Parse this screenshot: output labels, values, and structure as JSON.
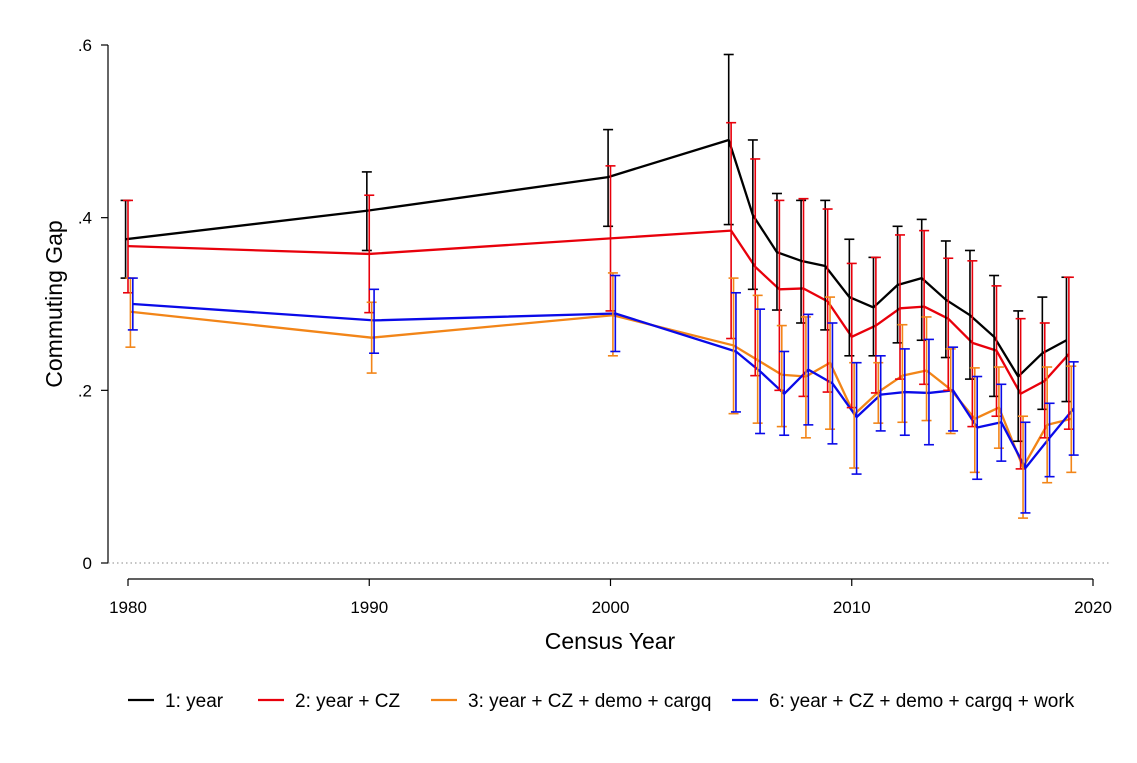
{
  "chart_data": {
    "type": "line",
    "title": "",
    "xlabel": "Census Year",
    "ylabel": "Commuting Gap",
    "xlim": [
      1980,
      2020
    ],
    "ylim": [
      0,
      0.6
    ],
    "x_ticks": [
      1980,
      1990,
      2000,
      2010,
      2020
    ],
    "x_tick_labels": [
      "1980",
      "1990",
      "2000",
      "2010",
      "2020"
    ],
    "y_ticks": [
      0,
      0.2,
      0.4,
      0.6
    ],
    "y_tick_labels": [
      "0",
      ".2",
      ".4",
      ".6"
    ],
    "zero_reference_line": true,
    "grid": false,
    "legend_position": "bottom",
    "x": [
      1980,
      1990,
      2000,
      2005,
      2006,
      2007,
      2008,
      2009,
      2010,
      2011,
      2012,
      2013,
      2014,
      2015,
      2016,
      2017,
      2018,
      2019
    ],
    "series": [
      {
        "name": "1: year",
        "color": "#000000",
        "x_offset": -0.1,
        "values": [
          0.375,
          0.408,
          0.447,
          0.49,
          0.403,
          0.36,
          0.35,
          0.344,
          0.308,
          0.296,
          0.322,
          0.33,
          0.305,
          0.287,
          0.262,
          0.216,
          0.243,
          0.258
        ],
        "lower": [
          0.33,
          0.362,
          0.39,
          0.392,
          0.317,
          0.293,
          0.278,
          0.27,
          0.24,
          0.24,
          0.255,
          0.258,
          0.238,
          0.213,
          0.193,
          0.141,
          0.178,
          0.187
        ],
        "upper": [
          0.42,
          0.453,
          0.502,
          0.589,
          0.49,
          0.428,
          0.42,
          0.42,
          0.375,
          0.354,
          0.39,
          0.398,
          0.373,
          0.362,
          0.333,
          0.292,
          0.308,
          0.331
        ]
      },
      {
        "name": "2: year + CZ",
        "color": "#e8000b",
        "x_offset": 0.0,
        "values": [
          0.367,
          0.358,
          0.376,
          0.385,
          0.343,
          0.317,
          0.318,
          0.303,
          0.262,
          0.275,
          0.295,
          0.297,
          0.283,
          0.255,
          0.246,
          0.196,
          0.211,
          0.242
        ],
        "lower": [
          0.313,
          0.29,
          0.292,
          0.26,
          0.217,
          0.2,
          0.193,
          0.198,
          0.18,
          0.197,
          0.213,
          0.207,
          0.2,
          0.158,
          0.17,
          0.109,
          0.145,
          0.155
        ],
        "upper": [
          0.42,
          0.426,
          0.46,
          0.51,
          0.468,
          0.42,
          0.422,
          0.41,
          0.347,
          0.354,
          0.38,
          0.385,
          0.353,
          0.35,
          0.321,
          0.283,
          0.278,
          0.331
        ]
      },
      {
        "name": "3: year + CZ + demo + cargq",
        "color": "#f28518",
        "x_offset": 0.1,
        "values": [
          0.291,
          0.261,
          0.287,
          0.252,
          0.235,
          0.218,
          0.216,
          0.232,
          0.172,
          0.198,
          0.217,
          0.223,
          0.201,
          0.167,
          0.18,
          0.111,
          0.16,
          0.167
        ],
        "lower": [
          0.25,
          0.22,
          0.24,
          0.173,
          0.162,
          0.158,
          0.145,
          0.155,
          0.11,
          0.162,
          0.163,
          0.165,
          0.15,
          0.105,
          0.133,
          0.052,
          0.093,
          0.105
        ],
        "upper": [
          0.33,
          0.302,
          0.336,
          0.33,
          0.31,
          0.275,
          0.285,
          0.308,
          0.232,
          0.232,
          0.276,
          0.285,
          0.248,
          0.226,
          0.227,
          0.17,
          0.227,
          0.228
        ]
      },
      {
        "name": "6: year + CZ + demo + cargq + work",
        "color": "#0a0ae8",
        "x_offset": 0.2,
        "values": [
          0.3,
          0.281,
          0.289,
          0.245,
          0.222,
          0.196,
          0.224,
          0.208,
          0.169,
          0.195,
          0.198,
          0.197,
          0.2,
          0.157,
          0.163,
          0.11,
          0.145,
          0.179
        ],
        "lower": [
          0.27,
          0.243,
          0.245,
          0.175,
          0.15,
          0.148,
          0.16,
          0.138,
          0.103,
          0.153,
          0.148,
          0.137,
          0.153,
          0.097,
          0.118,
          0.058,
          0.1,
          0.125
        ],
        "upper": [
          0.33,
          0.317,
          0.333,
          0.313,
          0.294,
          0.245,
          0.288,
          0.278,
          0.232,
          0.24,
          0.248,
          0.259,
          0.25,
          0.216,
          0.207,
          0.163,
          0.185,
          0.233
        ]
      }
    ]
  }
}
